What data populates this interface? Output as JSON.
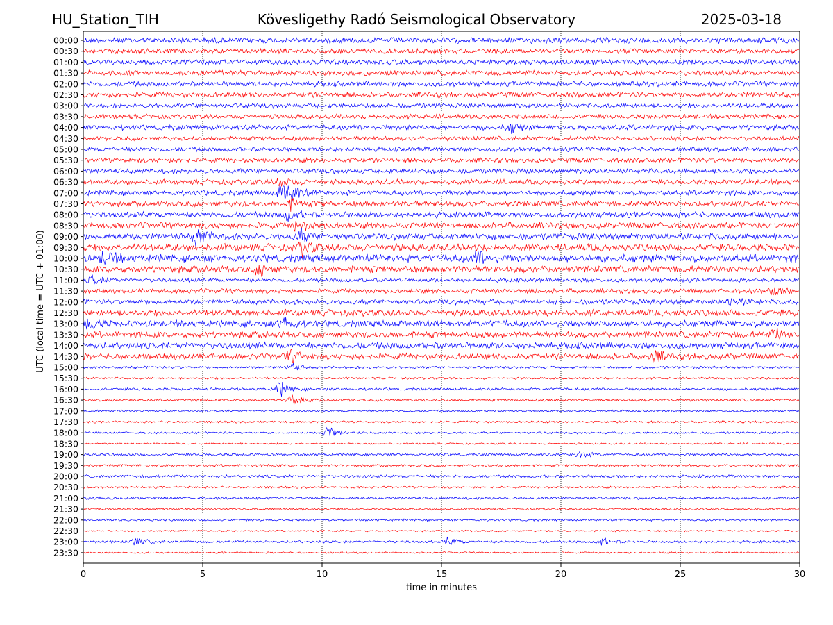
{
  "header": {
    "station": "HU_Station_TIH",
    "observatory": "Kövesligethy Radó Seismological Observatory",
    "date": "2025-03-18"
  },
  "chart_data": {
    "type": "line",
    "title": "Kövesligethy Radó Seismological Observatory",
    "xlabel": "time in minutes",
    "ylabel": "UTC (local time = UTC + 01:00)",
    "xlim": [
      0,
      30
    ],
    "x_ticks": [
      0,
      5,
      10,
      15,
      20,
      25,
      30
    ],
    "grid": "vertical dotted lines at x ticks",
    "series_colors": [
      "#0000ff",
      "#ff0000"
    ],
    "rows": [
      {
        "label": "00:00",
        "amplitude": 0.7,
        "events": []
      },
      {
        "label": "00:30",
        "amplitude": 0.6,
        "events": []
      },
      {
        "label": "01:00",
        "amplitude": 0.6,
        "events": []
      },
      {
        "label": "01:30",
        "amplitude": 0.6,
        "events": []
      },
      {
        "label": "02:00",
        "amplitude": 0.6,
        "events": []
      },
      {
        "label": "02:30",
        "amplitude": 0.6,
        "events": []
      },
      {
        "label": "03:00",
        "amplitude": 0.55,
        "events": []
      },
      {
        "label": "03:30",
        "amplitude": 0.55,
        "events": []
      },
      {
        "label": "04:00",
        "amplitude": 0.6,
        "events": [
          [
            17.9,
            0.9
          ]
        ]
      },
      {
        "label": "04:30",
        "amplitude": 0.5,
        "events": []
      },
      {
        "label": "05:00",
        "amplitude": 0.55,
        "events": []
      },
      {
        "label": "05:30",
        "amplitude": 0.55,
        "events": []
      },
      {
        "label": "06:00",
        "amplitude": 0.55,
        "events": []
      },
      {
        "label": "06:30",
        "amplitude": 0.6,
        "events": [
          [
            8.3,
            0.9
          ]
        ]
      },
      {
        "label": "07:00",
        "amplitude": 0.6,
        "events": [
          [
            8.3,
            1.6
          ],
          [
            8.7,
            1.4
          ]
        ]
      },
      {
        "label": "07:30",
        "amplitude": 0.65,
        "events": [
          [
            8.7,
            1.0
          ]
        ]
      },
      {
        "label": "08:00",
        "amplitude": 0.7,
        "events": [
          [
            8.6,
            1.0
          ]
        ]
      },
      {
        "label": "08:30",
        "amplitude": 0.75,
        "events": [
          [
            9.0,
            1.0
          ]
        ]
      },
      {
        "label": "09:00",
        "amplitude": 0.75,
        "events": [
          [
            4.8,
            1.7
          ],
          [
            9.1,
            1.0
          ]
        ]
      },
      {
        "label": "09:30",
        "amplitude": 0.85,
        "events": [
          [
            9.2,
            1.2
          ]
        ]
      },
      {
        "label": "10:00",
        "amplitude": 0.9,
        "events": [
          [
            0.9,
            1.3
          ],
          [
            16.5,
            1.3
          ]
        ]
      },
      {
        "label": "10:30",
        "amplitude": 0.8,
        "events": [
          [
            7.4,
            1.1
          ]
        ]
      },
      {
        "label": "11:00",
        "amplitude": 0.45,
        "events": [
          [
            0.4,
            0.9
          ]
        ]
      },
      {
        "label": "11:30",
        "amplitude": 0.55,
        "events": [
          [
            28.9,
            1.0
          ]
        ]
      },
      {
        "label": "12:00",
        "amplitude": 0.6,
        "events": [
          [
            27.2,
            1.0
          ]
        ]
      },
      {
        "label": "12:30",
        "amplitude": 0.75,
        "events": []
      },
      {
        "label": "13:00",
        "amplitude": 0.8,
        "events": [
          [
            0.2,
            1.2
          ],
          [
            8.4,
            1.3
          ]
        ]
      },
      {
        "label": "13:30",
        "amplitude": 0.75,
        "events": [
          [
            29.0,
            1.0
          ]
        ]
      },
      {
        "label": "14:00",
        "amplitude": 0.75,
        "events": []
      },
      {
        "label": "14:30",
        "amplitude": 0.7,
        "events": [
          [
            8.7,
            1.0
          ],
          [
            23.9,
            1.1
          ]
        ]
      },
      {
        "label": "15:00",
        "amplitude": 0.3,
        "events": [
          [
            8.7,
            0.9
          ]
        ]
      },
      {
        "label": "15:30",
        "amplitude": 0.25,
        "events": []
      },
      {
        "label": "16:00",
        "amplitude": 0.3,
        "events": [
          [
            8.2,
            1.5
          ]
        ]
      },
      {
        "label": "16:30",
        "amplitude": 0.3,
        "events": [
          [
            8.7,
            1.2
          ]
        ]
      },
      {
        "label": "17:00",
        "amplitude": 0.25,
        "events": []
      },
      {
        "label": "17:30",
        "amplitude": 0.25,
        "events": []
      },
      {
        "label": "18:00",
        "amplitude": 0.25,
        "events": [
          [
            10.2,
            1.4
          ]
        ]
      },
      {
        "label": "18:30",
        "amplitude": 0.2,
        "events": []
      },
      {
        "label": "19:00",
        "amplitude": 0.3,
        "events": [
          [
            20.8,
            0.7
          ]
        ]
      },
      {
        "label": "19:30",
        "amplitude": 0.3,
        "events": []
      },
      {
        "label": "20:00",
        "amplitude": 0.35,
        "events": []
      },
      {
        "label": "20:30",
        "amplitude": 0.25,
        "events": []
      },
      {
        "label": "21:00",
        "amplitude": 0.3,
        "events": []
      },
      {
        "label": "21:30",
        "amplitude": 0.25,
        "events": []
      },
      {
        "label": "22:00",
        "amplitude": 0.25,
        "events": []
      },
      {
        "label": "22:30",
        "amplitude": 0.2,
        "events": []
      },
      {
        "label": "23:00",
        "amplitude": 0.3,
        "events": [
          [
            2.2,
            0.8
          ],
          [
            15.3,
            0.8
          ],
          [
            21.7,
            0.8
          ]
        ]
      },
      {
        "label": "23:30",
        "amplitude": 0.2,
        "events": []
      }
    ]
  }
}
